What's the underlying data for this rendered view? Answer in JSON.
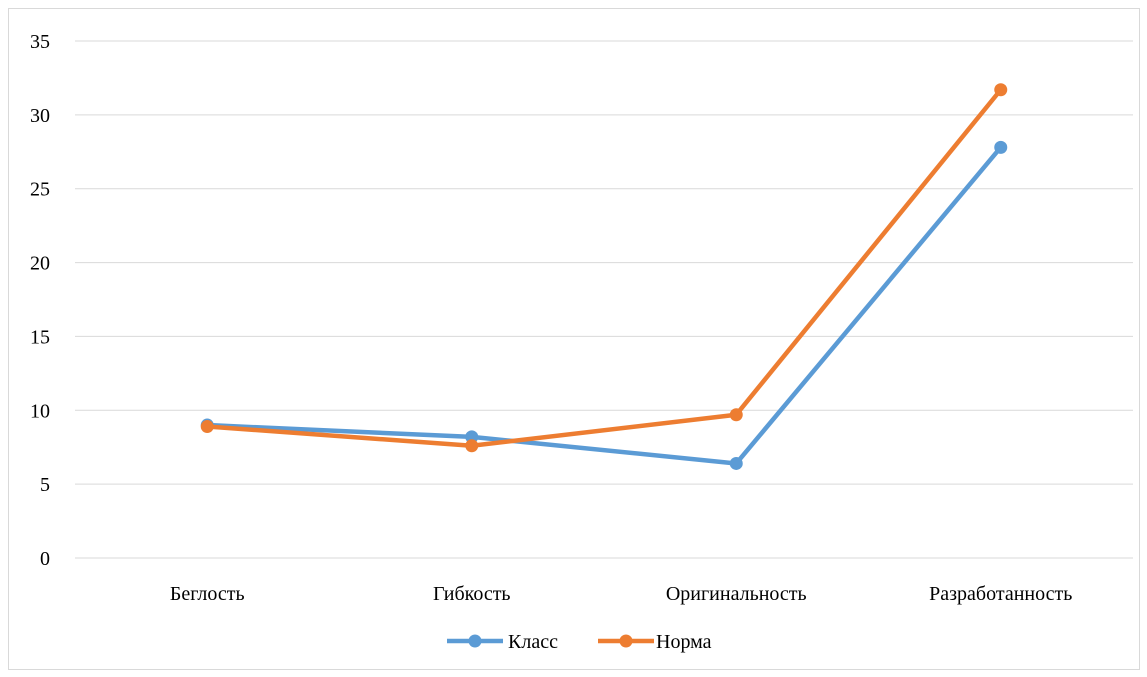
{
  "chart_data": {
    "type": "line",
    "categories": [
      "Беглость",
      "Гибкость",
      "Оригинальность",
      "Разработанность"
    ],
    "series": [
      {
        "name": "Класс",
        "values": [
          9.0,
          8.2,
          6.4,
          27.8
        ],
        "color": "#5b9bd5"
      },
      {
        "name": "Норма",
        "values": [
          8.9,
          7.6,
          9.7,
          31.7
        ],
        "color": "#ed7d31"
      }
    ],
    "yticks": [
      "0",
      "5",
      "10",
      "15",
      "20",
      "25",
      "30",
      "35"
    ],
    "ylim": [
      0,
      35
    ],
    "grid": true,
    "legend": "bottom-center"
  }
}
